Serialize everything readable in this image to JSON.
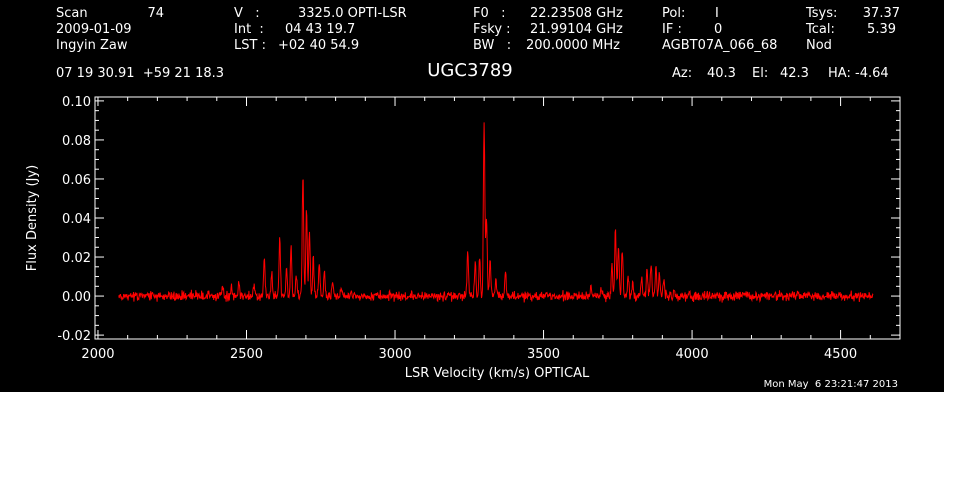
{
  "header": {
    "row1": [
      {
        "label": "Scan",
        "value": "74"
      },
      {
        "label": "V   :",
        "value": "3325.0 OPTI-LSR"
      },
      {
        "label": "F0   :",
        "value": "22.23508 GHz"
      },
      {
        "label": "Pol:",
        "value": "I"
      },
      {
        "label": "Tsys:",
        "value": "37.37"
      }
    ],
    "row2": [
      {
        "text": "2009-01-09"
      },
      {
        "label": "Int  :",
        "value": "04 43 19.7"
      },
      {
        "label": "Fsky :",
        "value": "21.99104 GHz"
      },
      {
        "label": "IF :",
        "value": "0"
      },
      {
        "label": "Tcal:",
        "value": "5.39"
      }
    ],
    "row3": [
      {
        "text": "Ingyin Zaw"
      },
      {
        "label": "LST :",
        "value": "+02 40 54.9"
      },
      {
        "label": "BW   :",
        "value": "200.0000 MHz"
      },
      {
        "text": "AGBT07A_066_68"
      },
      {
        "text": "Nod"
      }
    ],
    "coords": "07 19 30.91  +59 21 18.3",
    "object": "UGC3789",
    "az": {
      "label": "Az:",
      "value": "40.3"
    },
    "el": {
      "label": "El:",
      "value": "42.3"
    },
    "ha": {
      "label": "HA:",
      "value": "-4.64"
    },
    "timestamp": "Mon May  6 23:21:47 2013"
  },
  "colors": {
    "background": "#000000",
    "foreground": "#ffffff",
    "trace": "#ff0000"
  },
  "chart_data": {
    "type": "line",
    "xlabel": "LSR Velocity (km/s) OPTICAL",
    "ylabel": "Flux Density (Jy)",
    "xlim": [
      1990,
      4700
    ],
    "ylim": [
      -0.022,
      0.102
    ],
    "xticks": [
      2000,
      2500,
      3000,
      3500,
      4000,
      4500
    ],
    "yticks": [
      -0.02,
      0.0,
      0.02,
      0.04,
      0.06,
      0.08,
      0.1
    ],
    "xtick_labels": [
      "2000",
      "2500",
      "3000",
      "3500",
      "4000",
      "4500"
    ],
    "ytick_labels": [
      "-0.02",
      "0.00",
      "0.02",
      "0.04",
      "0.06",
      "0.08",
      "0.10"
    ],
    "grid": false,
    "series": [
      {
        "color": "#ff0000",
        "x_range": [
          2070,
          4610
        ],
        "noise_rms": 0.0012,
        "peaks": [
          {
            "x": 2420,
            "y": 0.006
          },
          {
            "x": 2450,
            "y": 0.005
          },
          {
            "x": 2475,
            "y": 0.007
          },
          {
            "x": 2525,
            "y": 0.006
          },
          {
            "x": 2560,
            "y": 0.018
          },
          {
            "x": 2585,
            "y": 0.011
          },
          {
            "x": 2612,
            "y": 0.03
          },
          {
            "x": 2635,
            "y": 0.013
          },
          {
            "x": 2650,
            "y": 0.026
          },
          {
            "x": 2668,
            "y": 0.01
          },
          {
            "x": 2690,
            "y": 0.062
          },
          {
            "x": 2702,
            "y": 0.046
          },
          {
            "x": 2712,
            "y": 0.034
          },
          {
            "x": 2725,
            "y": 0.02
          },
          {
            "x": 2745,
            "y": 0.017
          },
          {
            "x": 2762,
            "y": 0.012
          },
          {
            "x": 2790,
            "y": 0.007
          },
          {
            "x": 2820,
            "y": 0.004
          },
          {
            "x": 3245,
            "y": 0.023
          },
          {
            "x": 3270,
            "y": 0.016
          },
          {
            "x": 3285,
            "y": 0.02
          },
          {
            "x": 3300,
            "y": 0.09
          },
          {
            "x": 3308,
            "y": 0.04
          },
          {
            "x": 3320,
            "y": 0.019
          },
          {
            "x": 3340,
            "y": 0.009
          },
          {
            "x": 3372,
            "y": 0.012
          },
          {
            "x": 3660,
            "y": 0.006
          },
          {
            "x": 3695,
            "y": 0.004
          },
          {
            "x": 3730,
            "y": 0.016
          },
          {
            "x": 3742,
            "y": 0.034
          },
          {
            "x": 3752,
            "y": 0.026
          },
          {
            "x": 3765,
            "y": 0.023
          },
          {
            "x": 3785,
            "y": 0.01
          },
          {
            "x": 3800,
            "y": 0.007
          },
          {
            "x": 3830,
            "y": 0.009
          },
          {
            "x": 3848,
            "y": 0.012
          },
          {
            "x": 3862,
            "y": 0.017
          },
          {
            "x": 3878,
            "y": 0.014
          },
          {
            "x": 3890,
            "y": 0.01
          },
          {
            "x": 3905,
            "y": 0.008
          },
          {
            "x": 3940,
            "y": 0.004
          }
        ]
      }
    ]
  }
}
